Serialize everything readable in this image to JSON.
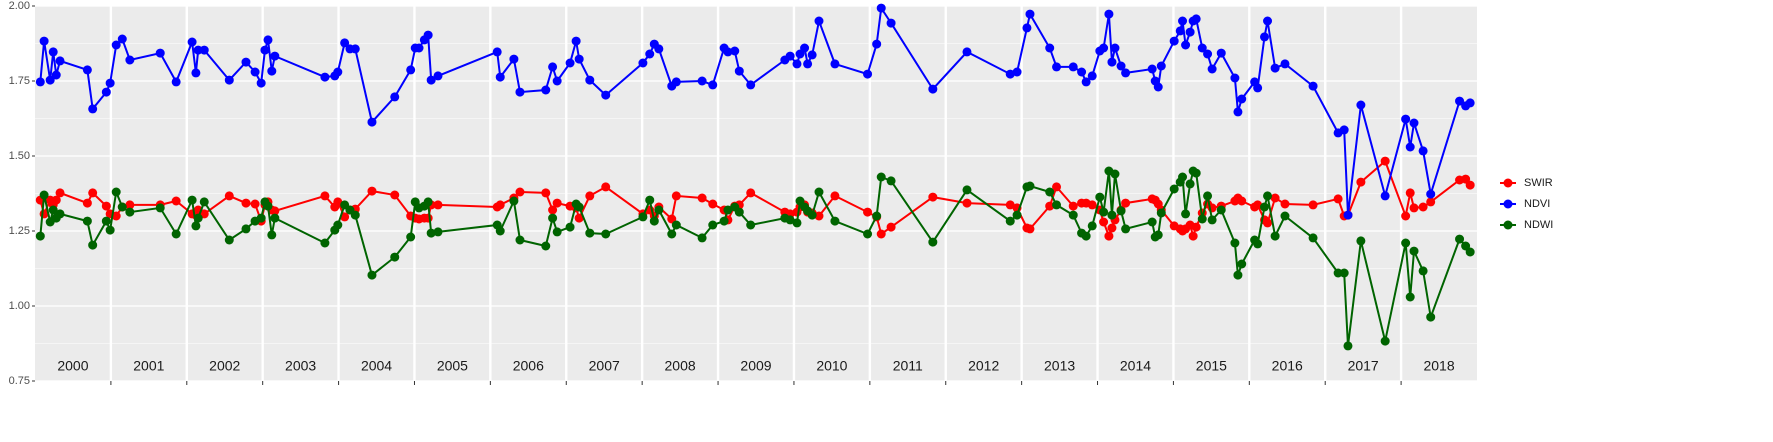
{
  "chart_data": {
    "type": "line",
    "x": [
      2000.07,
      2000.12,
      2000.2,
      2000.24,
      2000.28,
      2000.33,
      2000.69,
      2000.76,
      2000.94,
      2000.99,
      2001.07,
      2001.15,
      2001.25,
      2001.65,
      2001.86,
      2002.07,
      2002.12,
      2002.15,
      2002.23,
      2002.56,
      2002.78,
      2002.9,
      2002.98,
      2003.03,
      2003.07,
      2003.12,
      2003.16,
      2003.82,
      2003.95,
      2003.99,
      2004.08,
      2004.15,
      2004.22,
      2004.44,
      2004.74,
      2004.95,
      2005.01,
      2005.06,
      2005.13,
      2005.18,
      2005.22,
      2005.31,
      2006.09,
      2006.13,
      2006.31,
      2006.39,
      2006.73,
      2006.82,
      2006.88,
      2007.05,
      2007.13,
      2007.17,
      2007.31,
      2007.52,
      2008.01,
      2008.1,
      2008.16,
      2008.22,
      2008.39,
      2008.45,
      2008.79,
      2008.93,
      2009.08,
      2009.13,
      2009.22,
      2009.28,
      2009.43,
      2009.88,
      2009.95,
      2010.04,
      2010.08,
      2010.14,
      2010.18,
      2010.24,
      2010.33,
      2010.54,
      2010.97,
      2011.09,
      2011.15,
      2011.28,
      2011.83,
      2012.28,
      2012.85,
      2012.94,
      2013.07,
      2013.11,
      2013.37,
      2013.46,
      2013.68,
      2013.79,
      2013.85,
      2013.93,
      2014.03,
      2014.08,
      2014.15,
      2014.19,
      2014.23,
      2014.31,
      2014.37,
      2014.72,
      2014.76,
      2014.8,
      2014.84,
      2015.01,
      2015.09,
      2015.12,
      2015.16,
      2015.22,
      2015.26,
      2015.3,
      2015.38,
      2015.45,
      2015.51,
      2015.63,
      2015.81,
      2015.85,
      2015.9,
      2016.07,
      2016.11,
      2016.2,
      2016.24,
      2016.34,
      2016.47,
      2016.84,
      2017.17,
      2017.25,
      2017.3,
      2017.47,
      2017.79,
      2018.06,
      2018.12,
      2018.17,
      2018.29,
      2018.39,
      2018.77,
      2018.85,
      2018.91
    ],
    "series": [
      {
        "name": "SWIR",
        "color": "#ff0000",
        "values": [
          1.353,
          1.307,
          1.353,
          1.337,
          1.353,
          1.377,
          1.343,
          1.377,
          1.333,
          1.307,
          1.3,
          1.33,
          1.337,
          1.337,
          1.35,
          1.307,
          1.303,
          1.32,
          1.307,
          1.367,
          1.343,
          1.34,
          1.283,
          1.337,
          1.347,
          1.32,
          1.317,
          1.367,
          1.33,
          1.347,
          1.297,
          1.32,
          1.323,
          1.383,
          1.37,
          1.3,
          1.293,
          1.29,
          1.293,
          1.293,
          1.337,
          1.337,
          1.33,
          1.337,
          1.36,
          1.38,
          1.377,
          1.32,
          1.343,
          1.333,
          1.327,
          1.293,
          1.367,
          1.397,
          1.307,
          1.32,
          1.3,
          1.33,
          1.29,
          1.367,
          1.36,
          1.34,
          1.32,
          1.287,
          1.333,
          1.337,
          1.377,
          1.313,
          1.307,
          1.313,
          1.33,
          1.337,
          1.313,
          1.31,
          1.3,
          1.367,
          1.313,
          1.297,
          1.24,
          1.263,
          1.363,
          1.343,
          1.337,
          1.327,
          1.26,
          1.257,
          1.333,
          1.397,
          1.333,
          1.343,
          1.343,
          1.337,
          1.32,
          1.28,
          1.233,
          1.26,
          1.287,
          1.32,
          1.343,
          1.357,
          1.353,
          1.34,
          1.32,
          1.267,
          1.257,
          1.25,
          1.257,
          1.27,
          1.233,
          1.263,
          1.31,
          1.34,
          1.327,
          1.333,
          1.35,
          1.36,
          1.35,
          1.33,
          1.337,
          1.287,
          1.277,
          1.36,
          1.34,
          1.337,
          1.357,
          1.3,
          1.303,
          1.413,
          1.483,
          1.3,
          1.377,
          1.327,
          1.33,
          1.347,
          1.42,
          1.423,
          1.403
        ]
      },
      {
        "name": "NDVI",
        "color": "#0000ff",
        "values": [
          1.747,
          1.883,
          1.753,
          1.847,
          1.77,
          1.817,
          1.787,
          1.657,
          1.713,
          1.743,
          1.87,
          1.89,
          1.82,
          1.843,
          1.747,
          1.88,
          1.777,
          1.853,
          1.853,
          1.753,
          1.813,
          1.78,
          1.743,
          1.853,
          1.887,
          1.783,
          1.833,
          1.763,
          1.767,
          1.78,
          1.877,
          1.857,
          1.857,
          1.613,
          1.697,
          1.787,
          1.86,
          1.86,
          1.887,
          1.903,
          1.753,
          1.767,
          1.847,
          1.763,
          1.823,
          1.713,
          1.72,
          1.797,
          1.75,
          1.81,
          1.883,
          1.823,
          1.753,
          1.703,
          1.81,
          1.84,
          1.873,
          1.857,
          1.733,
          1.747,
          1.75,
          1.737,
          1.86,
          1.847,
          1.85,
          1.783,
          1.737,
          1.82,
          1.833,
          1.807,
          1.84,
          1.86,
          1.807,
          1.837,
          1.95,
          1.807,
          1.773,
          1.873,
          1.993,
          1.943,
          1.723,
          1.847,
          1.773,
          1.78,
          1.927,
          1.973,
          1.86,
          1.797,
          1.797,
          1.78,
          1.747,
          1.767,
          1.85,
          1.86,
          1.973,
          1.813,
          1.86,
          1.8,
          1.777,
          1.79,
          1.75,
          1.73,
          1.8,
          1.883,
          1.917,
          1.95,
          1.87,
          1.913,
          1.95,
          1.957,
          1.86,
          1.84,
          1.79,
          1.843,
          1.76,
          1.647,
          1.69,
          1.747,
          1.727,
          1.897,
          1.95,
          1.793,
          1.807,
          1.733,
          1.577,
          1.587,
          1.303,
          1.67,
          1.367,
          1.623,
          1.53,
          1.61,
          1.517,
          1.373,
          1.683,
          1.667,
          1.677
        ]
      },
      {
        "name": "NDWI",
        "color": "#006400",
        "values": [
          1.233,
          1.37,
          1.28,
          1.32,
          1.293,
          1.307,
          1.283,
          1.203,
          1.283,
          1.253,
          1.38,
          1.33,
          1.313,
          1.327,
          1.24,
          1.353,
          1.267,
          1.293,
          1.347,
          1.22,
          1.257,
          1.283,
          1.293,
          1.347,
          1.333,
          1.237,
          1.293,
          1.21,
          1.253,
          1.27,
          1.337,
          1.32,
          1.303,
          1.103,
          1.163,
          1.23,
          1.347,
          1.327,
          1.333,
          1.347,
          1.243,
          1.247,
          1.27,
          1.25,
          1.35,
          1.22,
          1.2,
          1.293,
          1.247,
          1.263,
          1.34,
          1.33,
          1.243,
          1.24,
          1.297,
          1.353,
          1.283,
          1.32,
          1.24,
          1.27,
          1.227,
          1.27,
          1.283,
          1.32,
          1.33,
          1.313,
          1.27,
          1.293,
          1.287,
          1.277,
          1.35,
          1.33,
          1.317,
          1.303,
          1.38,
          1.283,
          1.24,
          1.3,
          1.43,
          1.417,
          1.213,
          1.387,
          1.283,
          1.303,
          1.397,
          1.4,
          1.38,
          1.337,
          1.303,
          1.243,
          1.233,
          1.267,
          1.363,
          1.313,
          1.45,
          1.303,
          1.44,
          1.317,
          1.257,
          1.28,
          1.23,
          1.237,
          1.31,
          1.39,
          1.413,
          1.43,
          1.307,
          1.407,
          1.45,
          1.443,
          1.29,
          1.367,
          1.287,
          1.32,
          1.21,
          1.103,
          1.14,
          1.22,
          1.207,
          1.33,
          1.367,
          1.233,
          1.3,
          1.227,
          1.11,
          1.11,
          0.867,
          1.217,
          0.883,
          1.21,
          1.03,
          1.183,
          1.117,
          0.963,
          1.223,
          1.2,
          1.18
        ]
      }
    ],
    "xlim": [
      2000,
      2019
    ],
    "xticks": [
      2001,
      2002,
      2003,
      2004,
      2005,
      2006,
      2007,
      2008,
      2009,
      2010,
      2011,
      2012,
      2013,
      2014,
      2015,
      2016,
      2017,
      2018
    ],
    "year_labels": [
      "2000",
      "2001",
      "2002",
      "2003",
      "2004",
      "2005",
      "2006",
      "2007",
      "2008",
      "2009",
      "2010",
      "2011",
      "2012",
      "2013",
      "2014",
      "2015",
      "2016",
      "2017",
      "2018"
    ],
    "ylim": [
      0.75,
      2.0
    ],
    "yticks": [
      {
        "value": 0.75,
        "label": "0.75"
      },
      {
        "value": 1,
        "label": "1.00"
      },
      {
        "value": 1.25,
        "label": "1.25"
      },
      {
        "value": 1.5,
        "label": "1.50"
      },
      {
        "value": 1.75,
        "label": "1.75"
      },
      {
        "value": 2,
        "label": "2.00"
      }
    ],
    "grid": true,
    "legend": "right"
  }
}
